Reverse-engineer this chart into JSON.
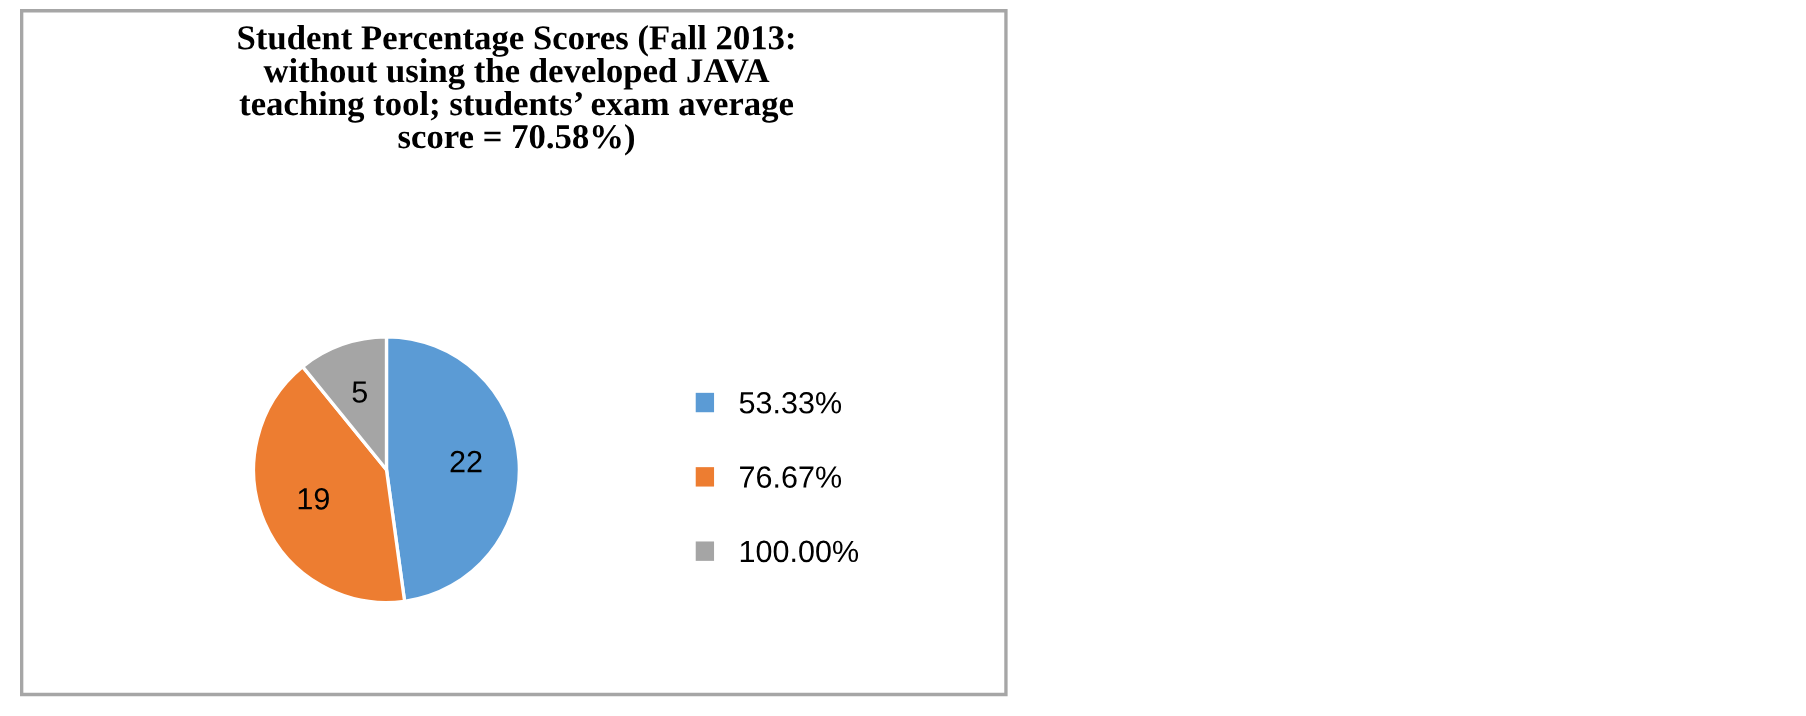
{
  "chart_data": {
    "type": "pie",
    "title": "Student Percentage Scores (Fall 2013:\nwithout using the developed JAVA\nteaching tool; students’ exam average\nscore = 70.58%)",
    "categories": [
      "53.33%",
      "76.67%",
      "100.00%"
    ],
    "values": [
      22,
      19,
      5
    ],
    "colors": [
      "#5b9bd5",
      "#ed7d31",
      "#a5a5a5"
    ],
    "data_labels": true,
    "legend": "right"
  }
}
